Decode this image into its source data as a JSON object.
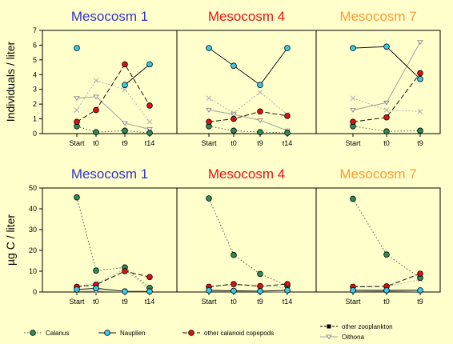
{
  "colors": {
    "background": "#ffffcc",
    "panel": "#ffffcc",
    "title_mesocosm_1": "#3333cc",
    "title_mesocosm_4": "#ee1111",
    "title_mesocosm_7": "#ff9933",
    "calanus_fill": "#2e8b57",
    "nauplien_fill": "#33ccee",
    "calanoid_fill": "#dd1111",
    "calanus_line": "#555555",
    "nauplien_line": "#111111",
    "calanoid_line": "#111111",
    "other_zoo_line": "#b0b0b0",
    "oithona_line": "#a0a0a0"
  },
  "legend": [
    {
      "name": "Calanus"
    },
    {
      "name": "Nauplien"
    },
    {
      "name": "other calanoid copepods"
    },
    {
      "name": "other zooplankton"
    },
    {
      "name": "Oithona"
    }
  ],
  "chart_data": [
    {
      "type": "line",
      "title": "Mesocosm 1",
      "ylabel": "Individuals / liter",
      "categories": [
        "Start",
        "t0",
        "t9",
        "t14"
      ],
      "ylim": [
        0,
        7
      ],
      "yticks": [
        0,
        1,
        2,
        3,
        4,
        5,
        6,
        7
      ],
      "series": [
        {
          "name": "Calanus",
          "values": [
            0.5,
            0.1,
            0.2,
            0.05
          ]
        },
        {
          "name": "Nauplien",
          "values": [
            5.8,
            null,
            3.3,
            4.7
          ]
        },
        {
          "name": "other calanoid copepods",
          "values": [
            0.8,
            1.6,
            4.7,
            1.9
          ]
        },
        {
          "name": "other zooplankton",
          "values": [
            1.6,
            3.6,
            3.0,
            0.8
          ]
        },
        {
          "name": "Oithona",
          "values": [
            2.4,
            2.5,
            0.7,
            0.3
          ]
        }
      ]
    },
    {
      "type": "line",
      "title": "Mesocosm 4",
      "categories": [
        "Start",
        "t0",
        "t9",
        "t14"
      ],
      "ylim": [
        0,
        7
      ],
      "series": [
        {
          "name": "Calanus",
          "values": [
            0.5,
            0.2,
            0.1,
            0.05
          ]
        },
        {
          "name": "Nauplien",
          "values": [
            5.8,
            4.6,
            3.3,
            5.8
          ]
        },
        {
          "name": "other calanoid copepods",
          "values": [
            0.8,
            1.0,
            1.5,
            1.2
          ]
        },
        {
          "name": "other zooplankton",
          "values": [
            2.4,
            1.4,
            2.8,
            1.3
          ]
        },
        {
          "name": "Oithona",
          "values": [
            1.6,
            1.3,
            0.9,
            0.2
          ]
        }
      ]
    },
    {
      "type": "line",
      "title": "Mesocosm 7",
      "categories": [
        "Start",
        "t0",
        "t9"
      ],
      "ylim": [
        0,
        7
      ],
      "series": [
        {
          "name": "Calanus",
          "values": [
            0.5,
            0.15,
            0.2
          ]
        },
        {
          "name": "Nauplien",
          "values": [
            5.8,
            5.9,
            3.7
          ]
        },
        {
          "name": "other calanoid copepods",
          "values": [
            0.8,
            1.1,
            4.1
          ]
        },
        {
          "name": "other zooplankton",
          "values": [
            2.4,
            1.6,
            1.5
          ]
        },
        {
          "name": "Oithona",
          "values": [
            1.6,
            2.1,
            6.2
          ]
        }
      ]
    },
    {
      "type": "line",
      "title": "Mesocosm 1",
      "ylabel": "µg C / liter",
      "categories": [
        "Start",
        "t0",
        "t9",
        "t14"
      ],
      "ylim": [
        0,
        50
      ],
      "yticks": [
        0,
        10,
        20,
        30,
        40,
        50
      ],
      "series": [
        {
          "name": "Calanus",
          "values": [
            45.5,
            10.3,
            11.8,
            2.0
          ]
        },
        {
          "name": "Nauplien",
          "values": [
            1.2,
            1.8,
            0.3,
            0.3
          ]
        },
        {
          "name": "other calanoid copepods",
          "values": [
            2.5,
            3.5,
            10.0,
            7.2
          ]
        },
        {
          "name": "other zooplankton",
          "values": [
            2.8,
            4.0,
            11.0,
            1.0
          ]
        },
        {
          "name": "Oithona",
          "values": [
            0.3,
            0.4,
            0.1,
            0.1
          ]
        }
      ]
    },
    {
      "type": "line",
      "title": "Mesocosm 4",
      "categories": [
        "Start",
        "t0",
        "t9",
        "t14"
      ],
      "ylim": [
        0,
        50
      ],
      "series": [
        {
          "name": "Calanus",
          "values": [
            45.0,
            17.8,
            8.7,
            3.0
          ]
        },
        {
          "name": "Nauplien",
          "values": [
            0.8,
            0.6,
            0.4,
            0.8
          ]
        },
        {
          "name": "other calanoid copepods",
          "values": [
            2.5,
            3.8,
            2.8,
            3.8
          ]
        },
        {
          "name": "other zooplankton",
          "values": [
            2.8,
            3.5,
            3.0,
            2.0
          ]
        },
        {
          "name": "Oithona",
          "values": [
            0.3,
            0.3,
            0.2,
            0.1
          ]
        }
      ]
    },
    {
      "type": "line",
      "title": "Mesocosm 7",
      "categories": [
        "Start",
        "t0",
        "t9"
      ],
      "ylim": [
        0,
        50
      ],
      "series": [
        {
          "name": "Calanus",
          "values": [
            44.8,
            18.0,
            6.8
          ]
        },
        {
          "name": "Nauplien",
          "values": [
            0.8,
            0.8,
            0.8
          ]
        },
        {
          "name": "other calanoid copepods",
          "values": [
            2.5,
            2.7,
            8.8
          ]
        },
        {
          "name": "other zooplankton",
          "values": [
            2.8,
            2.6,
            6.0
          ]
        },
        {
          "name": "Oithona",
          "values": [
            0.3,
            0.4,
            0.2
          ]
        }
      ]
    }
  ]
}
